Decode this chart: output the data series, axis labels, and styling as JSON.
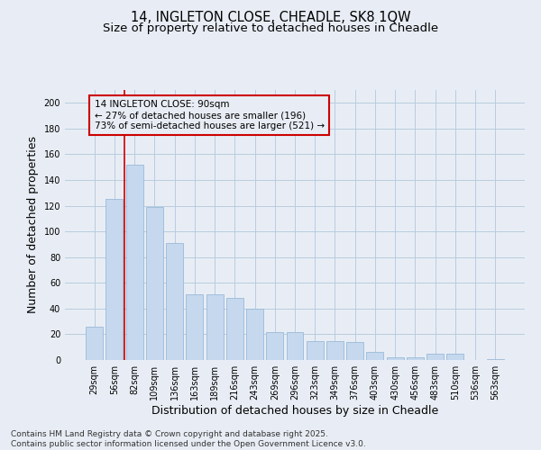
{
  "title_line1": "14, INGLETON CLOSE, CHEADLE, SK8 1QW",
  "title_line2": "Size of property relative to detached houses in Cheadle",
  "xlabel": "Distribution of detached houses by size in Cheadle",
  "ylabel": "Number of detached properties",
  "categories": [
    "29sqm",
    "56sqm",
    "82sqm",
    "109sqm",
    "136sqm",
    "163sqm",
    "189sqm",
    "216sqm",
    "243sqm",
    "269sqm",
    "296sqm",
    "323sqm",
    "349sqm",
    "376sqm",
    "403sqm",
    "430sqm",
    "456sqm",
    "483sqm",
    "510sqm",
    "536sqm",
    "563sqm"
  ],
  "values": [
    26,
    125,
    152,
    119,
    91,
    51,
    51,
    48,
    40,
    22,
    22,
    15,
    15,
    14,
    6,
    2,
    2,
    5,
    5,
    0,
    1
  ],
  "bar_color": "#c5d8ee",
  "bar_edge_color": "#9bbad8",
  "bar_width": 0.85,
  "vline_x": 1.5,
  "vline_color": "#cc0000",
  "annotation_text": "14 INGLETON CLOSE: 90sqm\n← 27% of detached houses are smaller (196)\n73% of semi-detached houses are larger (521) →",
  "annotation_box_color": "#cc0000",
  "ylim": [
    0,
    210
  ],
  "yticks": [
    0,
    20,
    40,
    60,
    80,
    100,
    120,
    140,
    160,
    180,
    200
  ],
  "grid_color": "#b8ccdf",
  "background_color": "#e8edf5",
  "footer_line1": "Contains HM Land Registry data © Crown copyright and database right 2025.",
  "footer_line2": "Contains public sector information licensed under the Open Government Licence v3.0.",
  "title_fontsize": 10.5,
  "subtitle_fontsize": 9.5,
  "axis_label_fontsize": 9,
  "tick_fontsize": 7,
  "footer_fontsize": 6.5,
  "ann_fontsize": 7.5
}
